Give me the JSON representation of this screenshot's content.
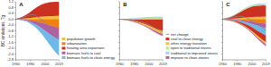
{
  "chart_data": [
    {
      "type": "area",
      "stacked": true,
      "title": "A",
      "ylabel": "BC emissions, Tg",
      "x": [
        1960,
        1965,
        1970,
        1975,
        1980,
        1985,
        1990,
        1995,
        2000,
        2005,
        2010,
        2015,
        2019
      ],
      "xlim": [
        1960,
        2019
      ],
      "xticks": [
        1960,
        1980,
        2000,
        2019
      ],
      "ylim": [
        -2.8,
        1.2
      ],
      "yticks": [
        -2.8,
        -2.4,
        {
          "value": -2.0,
          "label": "-2.0"
        },
        -1.6,
        -1.2,
        -0.8,
        -0.4,
        {
          "value": 0.0,
          "label": "0.0"
        },
        0.4,
        0.8,
        1.2
      ],
      "legend": "right",
      "series": [
        {
          "name": "population growth",
          "color": "#f0c040",
          "values": [
            0.0,
            0.02,
            0.04,
            0.07,
            0.1,
            0.13,
            0.16,
            0.18,
            0.2,
            0.21,
            0.22,
            0.23,
            0.24
          ]
        },
        {
          "name": "urbanization",
          "color": "#f08010",
          "values": [
            0.0,
            -0.01,
            -0.03,
            -0.05,
            -0.09,
            -0.13,
            -0.18,
            -0.24,
            -0.32,
            -0.4,
            -0.48,
            -0.55,
            -0.6
          ]
        },
        {
          "name": "heating area expansion",
          "color": "#cc3020",
          "values": [
            0.0,
            0.06,
            0.14,
            0.26,
            0.4,
            0.56,
            0.7,
            0.82,
            0.9,
            0.95,
            0.97,
            0.97,
            0.95
          ]
        },
        {
          "name": "biomass fuels to coal",
          "color": "#b060a0",
          "values": [
            0.0,
            -0.01,
            -0.03,
            -0.06,
            -0.11,
            -0.18,
            -0.27,
            -0.37,
            -0.48,
            -0.59,
            -0.69,
            -0.77,
            -0.82
          ]
        },
        {
          "name": "biomass fuels to clean energy",
          "color": "#70b8e8",
          "values": [
            0.0,
            -0.01,
            -0.03,
            -0.05,
            -0.1,
            -0.17,
            -0.26,
            -0.37,
            -0.52,
            -0.68,
            -0.84,
            -1.0,
            -1.12
          ]
        },
        {
          "type": "line",
          "color": "#888888",
          "values": [
            0.0,
            0.06,
            0.12,
            0.22,
            0.3,
            0.31,
            0.15,
            -0.02,
            -0.22,
            -0.51,
            -0.82,
            -1.12,
            -1.35
          ]
        }
      ]
    },
    {
      "type": "area",
      "stacked": true,
      "title": "B",
      "tick_labels": "x",
      "x": [
        1960,
        1965,
        1970,
        1975,
        1980,
        1985,
        1990,
        1995,
        2000,
        2005,
        2010,
        2015,
        2019
      ],
      "xlim": [
        1960,
        2019
      ],
      "xticks": [
        1960,
        1980,
        2000,
        2019
      ],
      "ylim": [
        -2.8,
        1.2
      ],
      "yticks": [
        -2.8,
        -2.4,
        {
          "value": -2.0,
          "label": "-2.0"
        },
        -1.6,
        -1.2,
        -0.8,
        -0.4,
        {
          "value": 0.0,
          "label": "0.0"
        },
        0.4,
        0.8,
        1.2
      ],
      "legend": "right",
      "series": [
        {
          "name": "net change",
          "type": "line",
          "color": "#888888",
          "values": [
            0.0,
            -0.01,
            -0.02,
            -0.04,
            -0.07,
            -0.12,
            -0.19,
            -0.28,
            -0.4,
            -0.53,
            -0.67,
            -0.79,
            -0.88
          ]
        },
        {
          "name": "coal to clean energy",
          "color": "#cc3020",
          "values": [
            0.0,
            -0.02,
            -0.05,
            -0.09,
            -0.14,
            -0.2,
            -0.28,
            -0.36,
            -0.46,
            -0.57,
            -0.67,
            -0.75,
            -0.8
          ]
        },
        {
          "name": "other energy transition",
          "color": "#f0c040",
          "values": [
            0.0,
            -0.005,
            -0.012,
            -0.022,
            -0.035,
            -0.052,
            -0.072,
            -0.095,
            -0.12,
            -0.15,
            -0.18,
            -0.2,
            -0.22
          ]
        },
        {
          "name": "open to traditional stoves",
          "color": "#c0e890",
          "values": [
            0.0,
            0.008,
            0.018,
            0.03,
            0.045,
            0.06,
            0.075,
            0.088,
            0.098,
            0.105,
            0.108,
            0.108,
            0.105
          ]
        },
        {
          "name": "traditional to improved stoves",
          "color": "#a8d0f0",
          "values": [
            0.0,
            0.004,
            0.009,
            0.015,
            0.022,
            0.03,
            0.038,
            0.044,
            0.05,
            0.054,
            0.056,
            0.056,
            0.055
          ]
        },
        {
          "name": "improve to clean stoves",
          "color": "#c060a0",
          "values": [
            0.0,
            -0.002,
            -0.005,
            -0.01,
            -0.018,
            -0.028,
            -0.04,
            -0.055,
            -0.072,
            -0.09,
            -0.108,
            -0.124,
            -0.135
          ]
        }
      ]
    },
    {
      "type": "area",
      "stacked": true,
      "title": "C",
      "tick_labels": "x",
      "x": [
        1960,
        1965,
        1970,
        1975,
        1980,
        1985,
        1990,
        1995,
        2000,
        2005,
        2010,
        2015,
        2019
      ],
      "xlim": [
        1960,
        2019
      ],
      "xticks": [
        1960,
        1980,
        2000,
        2019
      ],
      "ylim": [
        -2.8,
        1.2
      ],
      "yticks": [
        -2.8,
        -2.4,
        {
          "value": -2.0,
          "label": "-2.0"
        },
        -1.6,
        -1.2,
        -0.8,
        -0.4,
        {
          "value": 0.0,
          "label": "0.0"
        },
        0.4,
        0.8,
        1.2
      ],
      "series": [
        {
          "color": "#f0c040",
          "values": [
            0.0,
            0.015,
            0.03,
            0.05,
            0.072,
            0.095,
            0.118,
            0.138,
            0.155,
            0.168,
            0.176,
            0.182,
            0.186
          ]
        },
        {
          "color": "#cc3020",
          "values": [
            0.0,
            0.048,
            0.108,
            0.196,
            0.308,
            0.432,
            0.548,
            0.645,
            0.715,
            0.755,
            0.77,
            0.768,
            0.748
          ]
        },
        {
          "color": "#c0e890",
          "values": [
            0.0,
            0.005,
            0.012,
            0.02,
            0.03,
            0.04,
            0.05,
            0.058,
            0.065,
            0.07,
            0.072,
            0.072,
            0.07
          ]
        },
        {
          "color": "#a8d0f0",
          "values": [
            0.0,
            0.003,
            0.006,
            0.01,
            0.015,
            0.02,
            0.025,
            0.03,
            0.034,
            0.037,
            0.038,
            0.038,
            0.037
          ]
        },
        {
          "color": "#f08010",
          "values": [
            0.0,
            -0.006,
            -0.015,
            -0.028,
            -0.046,
            -0.068,
            -0.096,
            -0.128,
            -0.166,
            -0.208,
            -0.25,
            -0.288,
            -0.315
          ]
        },
        {
          "color": "#b060a0",
          "values": [
            0.0,
            -0.006,
            -0.015,
            -0.028,
            -0.046,
            -0.068,
            -0.096,
            -0.128,
            -0.166,
            -0.208,
            -0.248,
            -0.282,
            -0.305
          ]
        },
        {
          "color": "#70b8e8",
          "values": [
            0.0,
            -0.008,
            -0.018,
            -0.034,
            -0.058,
            -0.09,
            -0.132,
            -0.182,
            -0.244,
            -0.316,
            -0.392,
            -0.468,
            -0.525
          ]
        },
        {
          "color": "#cc3020",
          "values": [
            0.0,
            -0.012,
            -0.028,
            -0.05,
            -0.08,
            -0.116,
            -0.158,
            -0.206,
            -0.26,
            -0.318,
            -0.372,
            -0.416,
            -0.445
          ]
        },
        {
          "color": "#f0c040",
          "values": [
            0.0,
            -0.003,
            -0.007,
            -0.013,
            -0.021,
            -0.032,
            -0.045,
            -0.06,
            -0.078,
            -0.098,
            -0.118,
            -0.136,
            -0.148
          ]
        },
        {
          "color": "#c060a0",
          "values": [
            0.0,
            -0.001,
            -0.003,
            -0.007,
            -0.012,
            -0.02,
            -0.03,
            -0.042,
            -0.058,
            -0.076,
            -0.095,
            -0.114,
            -0.128
          ]
        },
        {
          "type": "line",
          "color": "#888888",
          "values": [
            0.0,
            0.038,
            0.083,
            0.144,
            0.21,
            0.203,
            0.134,
            0.035,
            -0.103,
            -0.27,
            -0.451,
            -0.624,
            -0.762
          ]
        }
      ]
    }
  ]
}
